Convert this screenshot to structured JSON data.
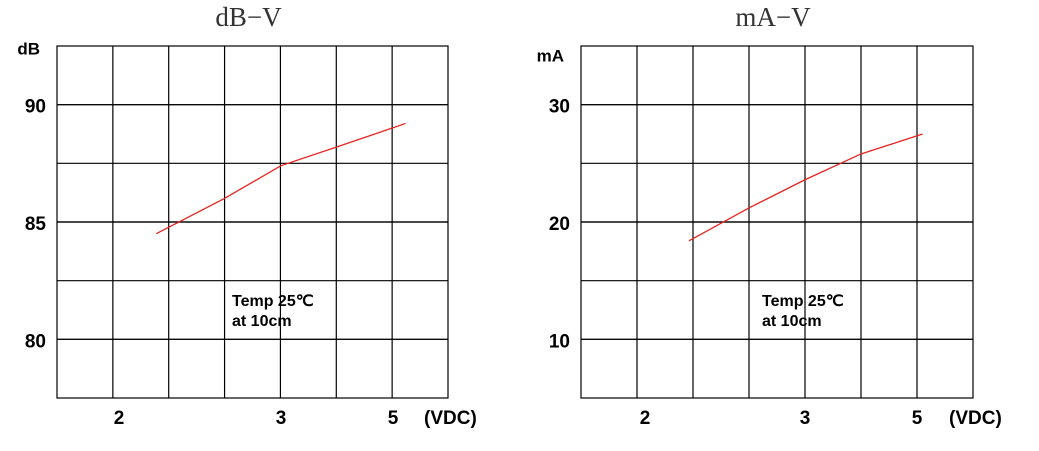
{
  "chart_data": [
    {
      "type": "line",
      "title": "dB−V",
      "ylabel": "dB",
      "xlabel": "(VDC)",
      "annotations": [
        "Temp 25℃",
        "at 10cm"
      ],
      "x": [
        2.23,
        2.65,
        3,
        4,
        5.23
      ],
      "series": [
        {
          "color": "#e8231f",
          "values": [
            84.5,
            86.0,
            87.4,
            88.2,
            89.2
          ]
        }
      ],
      "xlim": [
        1.62,
        6
      ],
      "xticks": [
        2,
        3,
        5
      ],
      "ylim": [
        77.5,
        92.5
      ],
      "yticks": [
        80,
        85,
        90
      ],
      "grid": true
    },
    {
      "type": "line",
      "title": "mA−V",
      "ylabel": "mA",
      "xlabel": "(VDC)",
      "annotations": [
        "Temp 25℃",
        "at 10cm"
      ],
      "x": [
        2.275,
        2.65,
        3,
        4,
        5.1
      ],
      "series": [
        {
          "color": "#e8231f",
          "values": [
            18.4,
            21.2,
            23.6,
            25.8,
            27.5
          ]
        }
      ],
      "xlim": [
        1.6,
        6
      ],
      "xticks": [
        2,
        3,
        5
      ],
      "ylim": [
        5,
        35
      ],
      "yticks": [
        10,
        20,
        30
      ],
      "grid": true
    }
  ]
}
